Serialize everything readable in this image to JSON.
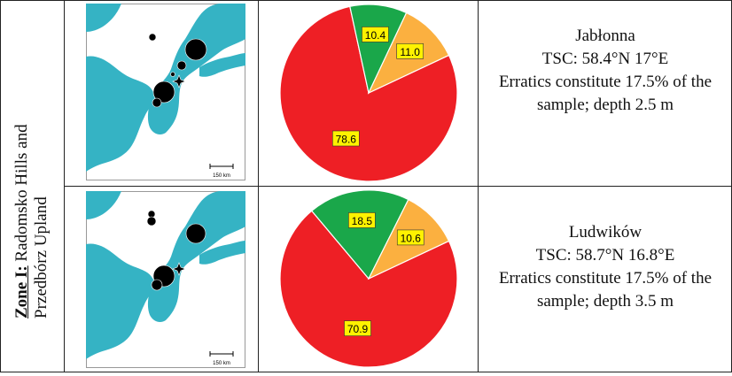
{
  "zone": {
    "label_strong": "Zone I:",
    "label_rest_1": " Radomsko Hills and",
    "label_rest_2": "Przedbórz Upland"
  },
  "colors": {
    "sea": "#35b3c4",
    "land": "#ffffff",
    "dot": "#000000",
    "red": "#ee1f25",
    "green": "#1aa74a",
    "orange": "#fbb040",
    "label_box": "#fff200"
  },
  "rows": [
    {
      "site": "Jabłonna",
      "tsc": "TSC: 58.4°N   17°E",
      "erratics_1": "Erratics constitute 17.5% of the",
      "erratics_2": "sample; depth 2.5 m",
      "scale_label": "150 km",
      "chart_data": {
        "type": "pie",
        "values": [
          78.6,
          10.4,
          11.0
        ],
        "labels": [
          "78.6",
          "10.4",
          "11.0"
        ]
      }
    },
    {
      "site": "Ludwików",
      "tsc": "TSC: 58.7°N   16.8°E",
      "erratics_1": "Erratics constitute 17.5% of the",
      "erratics_2": "sample; depth 3.5 m",
      "scale_label": "150 km",
      "chart_data": {
        "type": "pie",
        "values": [
          70.9,
          18.5,
          10.6
        ],
        "labels": [
          "70.9",
          "18.5",
          "10.6"
        ]
      }
    }
  ]
}
